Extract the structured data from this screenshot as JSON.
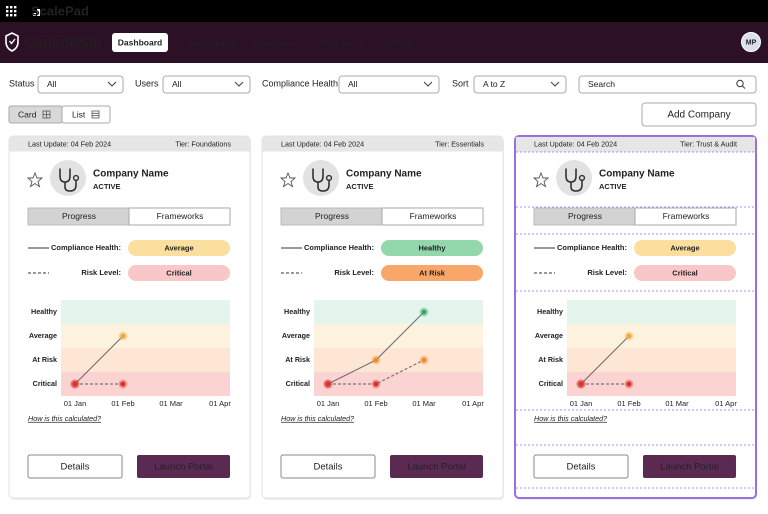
{
  "topbar": {
    "brand": "ScalePad"
  },
  "nav": {
    "product": "ControlMap",
    "items": [
      "Dashboard",
      "Assessment",
      "Documents",
      "Integrations",
      "Settings"
    ],
    "avatar": "MP"
  },
  "filters": [
    {
      "label": "Status",
      "value": "All"
    },
    {
      "label": "Users",
      "value": "All"
    },
    {
      "label": "Compliance Health",
      "value": "All"
    },
    {
      "label": "Sort",
      "value": "A to Z"
    }
  ],
  "search": "Search",
  "view_toggle": [
    "Card",
    "List"
  ],
  "add_button": "Add Company",
  "health_scale": {
    "levels": [
      "Healthy",
      "Average",
      "At Risk",
      "Critical"
    ],
    "band_colors": [
      "#e4f5eb",
      "#fdf2de",
      "#fde6d4",
      "#fbd3d2"
    ],
    "pill_colors": [
      "#93d7ac",
      "#fbdf9e",
      "#f9a66b",
      "#f9c7c7"
    ],
    "point_colors": [
      "#3aa863",
      "#f2a93b",
      "#f28a2e",
      "#d8352f"
    ]
  },
  "cards": [
    {
      "last_update": "Last Update: 04 Feb 2024",
      "tier": "Tier: Foundations",
      "company": "Company Name",
      "status": "ACTIVE",
      "tabs": [
        "Progress",
        "Frameworks"
      ],
      "compliance_label": "Compliance Health:",
      "compliance": "Average",
      "risk_label": "Risk Level:",
      "risk": "Critical",
      "chart": {
        "x": [
          "01 Jan",
          "01 Feb",
          "01 Mar",
          "01 Apr"
        ],
        "compliance": [
          "Critical",
          "Average",
          null,
          null
        ],
        "risk": [
          "Critical",
          "Critical",
          null,
          null
        ]
      },
      "help": "How is this calculated?",
      "buttons": [
        "Details",
        "Launch Portal"
      ]
    },
    {
      "last_update": "Last Update: 04 Feb 2024",
      "tier": "Tier: Essentials",
      "company": "Company Name",
      "status": "ACTIVE",
      "tabs": [
        "Progress",
        "Frameworks"
      ],
      "compliance_label": "Compliance Health:",
      "compliance": "Healthy",
      "risk_label": "Risk Level:",
      "risk": "At Risk",
      "chart": {
        "x": [
          "01 Jan",
          "01 Feb",
          "01 Mar",
          "01 Apr"
        ],
        "compliance": [
          "Critical",
          "At Risk",
          "Healthy",
          null
        ],
        "risk": [
          "Critical",
          "Critical",
          "At Risk",
          null
        ]
      },
      "help": "How is this calculated?",
      "buttons": [
        "Details",
        "Launch Portal"
      ]
    },
    {
      "last_update": "Last Update: 04 Feb 2024",
      "tier": "Tier:  Trust & Audit",
      "company": "Company Name",
      "status": "ACTIVE",
      "tabs": [
        "Progress",
        "Frameworks"
      ],
      "compliance_label": "Compliance Health:",
      "compliance": "Average",
      "risk_label": "Risk Level:",
      "risk": "Critical",
      "chart": {
        "x": [
          "01 Jan",
          "01 Feb",
          "01 Mar",
          "01 Apr"
        ],
        "compliance": [
          "Critical",
          "Average",
          null,
          null
        ],
        "risk": [
          "Critical",
          "Critical",
          null,
          null
        ]
      },
      "help": "How is this calculated?",
      "buttons": [
        "Details",
        "Launch Portal"
      ]
    }
  ]
}
